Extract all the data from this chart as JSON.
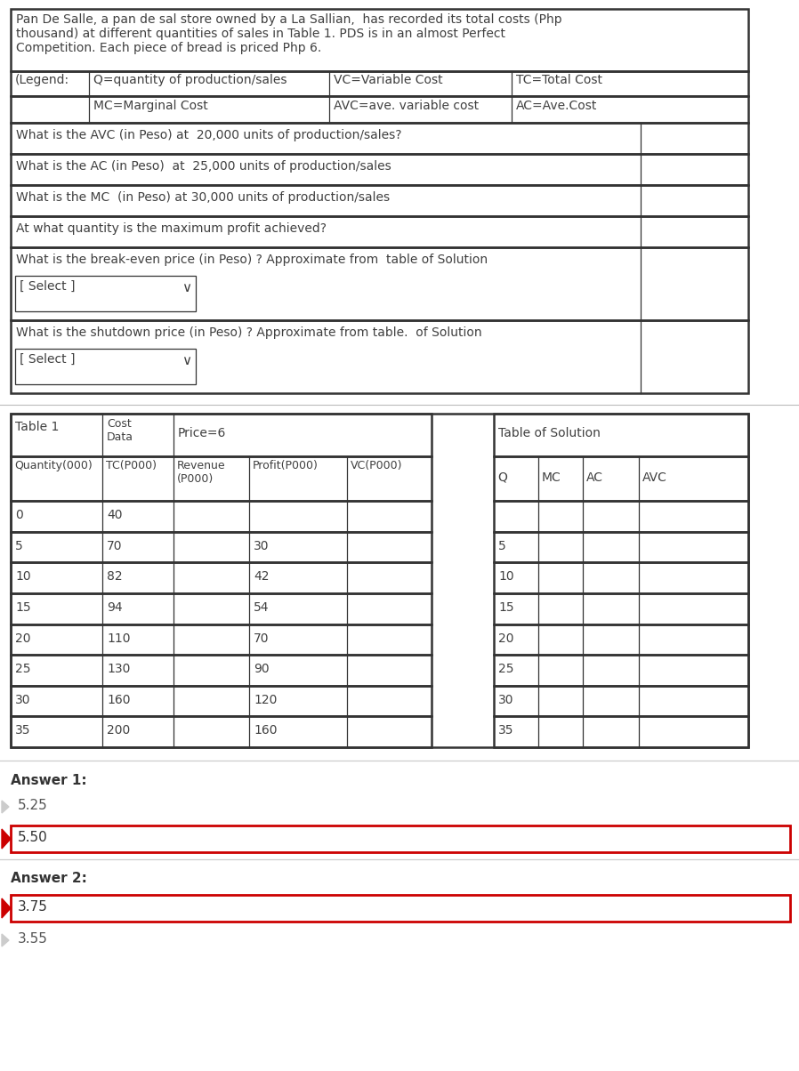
{
  "title_text": "Pan De Salle, a pan de sal store owned by a La Sallian,  has recorded its total costs (Php\nthousand) at different quantities of sales in Table 1. PDS is in an almost Perfect\nCompetition. Each piece of bread is priced Php 6.",
  "legend_row1": [
    "(Legend:",
    "Q=quantity of production/sales",
    "VC=Variable Cost",
    "TC=Total Cost"
  ],
  "legend_row2": [
    "",
    "MC=Marginal Cost",
    "AVC=ave. variable cost",
    "AC=Ave.Cost"
  ],
  "questions": [
    "What is the AVC (in Peso) at  20,000 units of production/sales?",
    "What is the AC (in Peso)  at  25,000 units of production/sales",
    "What is the MC  (in Peso) at 30,000 units of production/sales",
    "At what quantity is the maximum profit achieved?",
    "What is the break-even price (in Peso) ? Approximate from  table of Solution",
    "What is the shutdown price (in Peso) ? Approximate from table.  of Solution"
  ],
  "has_select_dropdown": [
    false,
    false,
    false,
    false,
    true,
    true
  ],
  "table1_data": [
    [
      "0",
      "40",
      "",
      "",
      ""
    ],
    [
      "5",
      "70",
      "",
      "30",
      ""
    ],
    [
      "10",
      "82",
      "",
      "42",
      ""
    ],
    [
      "15",
      "94",
      "",
      "54",
      ""
    ],
    [
      "20",
      "110",
      "",
      "70",
      ""
    ],
    [
      "25",
      "130",
      "",
      "90",
      ""
    ],
    [
      "30",
      "160",
      "",
      "120",
      ""
    ],
    [
      "35",
      "200",
      "",
      "160",
      ""
    ]
  ],
  "table2_data": [
    [
      "5",
      "",
      "",
      ""
    ],
    [
      "10",
      "",
      "",
      ""
    ],
    [
      "15",
      "",
      "",
      ""
    ],
    [
      "20",
      "",
      "",
      ""
    ],
    [
      "25",
      "",
      "",
      ""
    ],
    [
      "30",
      "",
      "",
      ""
    ],
    [
      "35",
      "",
      "",
      ""
    ]
  ],
  "table1_label": "Table 1",
  "table1_sublabel1": "Cost\nData",
  "table1_sublabel2": "Price=6",
  "table2_label": "Table of Solution",
  "answer1_label": "Answer 1:",
  "answer1_options": [
    "5.25",
    "5.50"
  ],
  "answer1_selected": 1,
  "answer2_label": "Answer 2:",
  "answer2_options": [
    "3.75",
    "3.55"
  ],
  "answer2_selected": 0,
  "bg_color": "#ffffff",
  "border_color": "#333333",
  "text_color": "#404040",
  "selected_border_color": "#cc0000",
  "font_size": 10,
  "small_font_size": 9
}
